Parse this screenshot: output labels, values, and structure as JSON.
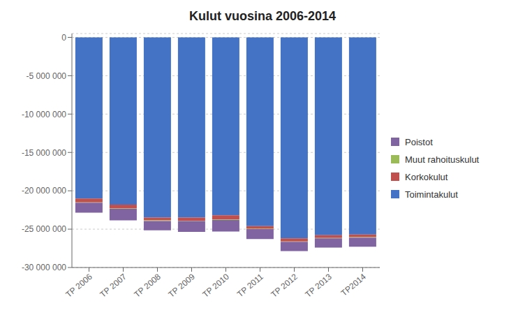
{
  "chart_data": {
    "type": "bar",
    "title": "Kulut vuosina 2006-2014",
    "categories": [
      "TP 2006",
      "TP 2007",
      "TP 2008",
      "TP 2009",
      "TP 2010",
      "TP 2011",
      "TP 2012",
      "TP 2013",
      "TP2014"
    ],
    "series": [
      {
        "name": "Toimintakulut",
        "color": "#4472C4",
        "values": [
          -21000000,
          -21800000,
          -23500000,
          -23500000,
          -23200000,
          -24600000,
          -26200000,
          -25800000,
          -25700000
        ]
      },
      {
        "name": "Korkokulut",
        "color": "#C0504D",
        "values": [
          -500000,
          -500000,
          -350000,
          -400000,
          -550000,
          -350000,
          -400000,
          -350000,
          -350000
        ]
      },
      {
        "name": "Muut rahoituskulut",
        "color": "#9BBB59",
        "values": [
          -50000,
          -50000,
          -100000,
          -50000,
          -50000,
          -50000,
          -50000,
          -50000,
          -50000
        ]
      },
      {
        "name": "Poistot",
        "color": "#8064A2",
        "values": [
          -1300000,
          -1500000,
          -1200000,
          -1400000,
          -1500000,
          -1300000,
          -1200000,
          -1200000,
          -1200000
        ]
      }
    ],
    "ylim": [
      -30000000,
      500000
    ],
    "yticks": [
      0,
      {
        "value": -5000000,
        "label": "-5 000 000"
      },
      {
        "value": -10000000,
        "label": "-10 000 000"
      },
      {
        "value": -15000000,
        "label": "-15 000 000"
      },
      {
        "value": -20000000,
        "label": "-20 000 000"
      },
      {
        "value": -25000000,
        "label": "-25 000 000"
      },
      {
        "value": -30000000,
        "label": "-30 000 000"
      }
    ],
    "stacked": true,
    "grid": true,
    "legend": "right"
  }
}
